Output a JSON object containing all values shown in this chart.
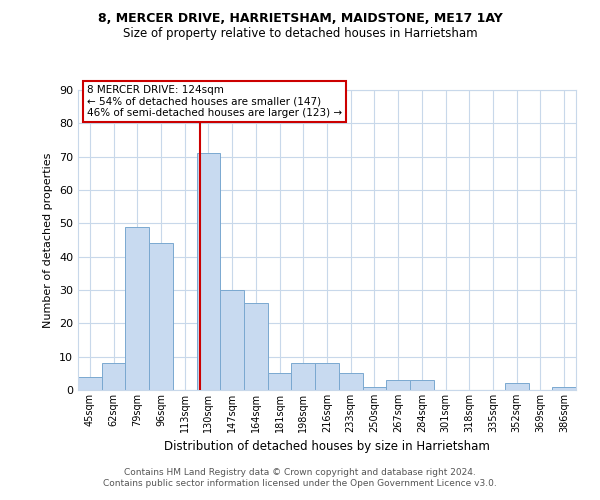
{
  "title1": "8, MERCER DRIVE, HARRIETSHAM, MAIDSTONE, ME17 1AY",
  "title2": "Size of property relative to detached houses in Harrietsham",
  "xlabel": "Distribution of detached houses by size in Harrietsham",
  "ylabel": "Number of detached properties",
  "bin_labels": [
    "45sqm",
    "62sqm",
    "79sqm",
    "96sqm",
    "113sqm",
    "130sqm",
    "147sqm",
    "164sqm",
    "181sqm",
    "198sqm",
    "216sqm",
    "233sqm",
    "250sqm",
    "267sqm",
    "284sqm",
    "301sqm",
    "318sqm",
    "335sqm",
    "352sqm",
    "369sqm",
    "386sqm"
  ],
  "bar_heights": [
    4,
    8,
    49,
    44,
    0,
    71,
    30,
    26,
    5,
    8,
    8,
    5,
    1,
    3,
    3,
    0,
    0,
    0,
    2,
    0,
    1
  ],
  "bar_color": "#c8daf0",
  "bar_edge_color": "#7aa8d0",
  "property_line_x": 4.647,
  "property_line_color": "#cc0000",
  "annotation_text_line1": "8 MERCER DRIVE: 124sqm",
  "annotation_text_line2": "← 54% of detached houses are smaller (147)",
  "annotation_text_line3": "46% of semi-detached houses are larger (123) →",
  "ylim": [
    0,
    90
  ],
  "yticks": [
    0,
    10,
    20,
    30,
    40,
    50,
    60,
    70,
    80,
    90
  ],
  "footer_line1": "Contains HM Land Registry data © Crown copyright and database right 2024.",
  "footer_line2": "Contains public sector information licensed under the Open Government Licence v3.0.",
  "bg_color": "#ffffff",
  "grid_color": "#c8d8ea"
}
